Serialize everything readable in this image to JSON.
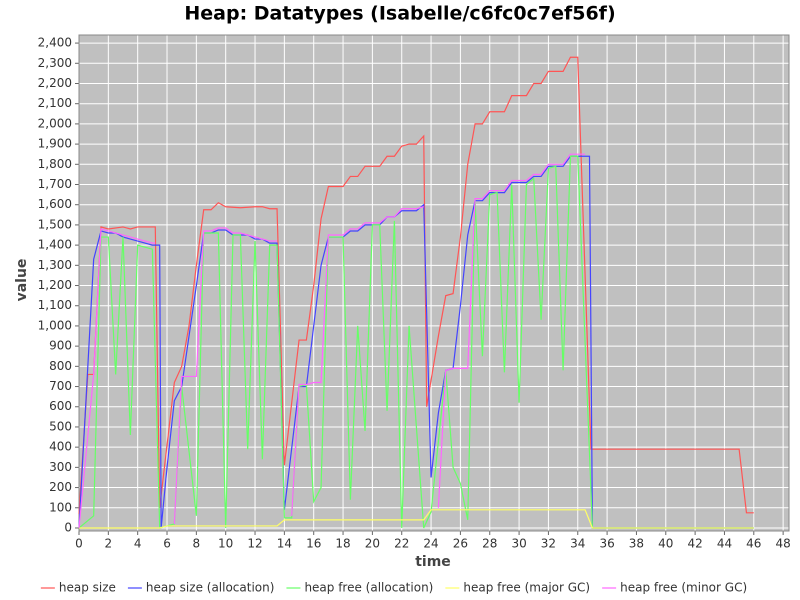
{
  "chart_data": {
    "type": "line",
    "title": "Heap: Datatypes (Isabelle/c6fc0c7ef56f)",
    "x_label": "time",
    "y_label": "value",
    "xlim": [
      0,
      48.4
    ],
    "ylim": [
      -15,
      2440
    ],
    "xticks": [
      0,
      2,
      4,
      6,
      8,
      10,
      12,
      14,
      16,
      18,
      20,
      22,
      24,
      26,
      28,
      30,
      32,
      34,
      36,
      38,
      40,
      42,
      44,
      46,
      48
    ],
    "yticks": [
      0,
      100,
      200,
      300,
      400,
      500,
      600,
      700,
      800,
      900,
      {
        "value": 1000,
        "label": "1,000"
      },
      {
        "value": 1100,
        "label": "1,100"
      },
      {
        "value": 1200,
        "label": "1,200"
      },
      {
        "value": 1300,
        "label": "1,300"
      },
      {
        "value": 1400,
        "label": "1,400"
      },
      {
        "value": 1500,
        "label": "1,500"
      },
      {
        "value": 1600,
        "label": "1,600"
      },
      {
        "value": 1700,
        "label": "1,700"
      },
      {
        "value": 1800,
        "label": "1,800"
      },
      {
        "value": 1900,
        "label": "1,900"
      },
      {
        "value": 2000,
        "label": "2,000"
      },
      {
        "value": 2100,
        "label": "2,100"
      },
      {
        "value": 2200,
        "label": "2,200"
      },
      {
        "value": 2300,
        "label": "2,300"
      },
      {
        "value": 2400,
        "label": "2,400"
      }
    ],
    "grid": true,
    "background": "#c0c0c0",
    "legend": "bottom",
    "series": [
      {
        "name": "heap size",
        "color": "#ff5555",
        "x": [
          0,
          0.6,
          1,
          1.5,
          2,
          3,
          3.5,
          4,
          5,
          5.2,
          5.5,
          6.5,
          7,
          7.5,
          8,
          8.5,
          9,
          9.5,
          10,
          11,
          12,
          12.5,
          13,
          13.5,
          14,
          15,
          15.5,
          16,
          16.5,
          17,
          18,
          18.5,
          19,
          19.5,
          20,
          20.5,
          21,
          21.5,
          22,
          22.5,
          23,
          23.5,
          23.7,
          24.5,
          25,
          25.5,
          26,
          26.5,
          27,
          27.5,
          28,
          29,
          29.5,
          30,
          30.5,
          31,
          31.5,
          32,
          33,
          33.5,
          34,
          34.9,
          35,
          45,
          45.5,
          46
        ],
        "values": [
          70,
          760,
          760,
          1490,
          1480,
          1490,
          1480,
          1490,
          1490,
          1490,
          100,
          720,
          800,
          1000,
          1300,
          1575,
          1575,
          1610,
          1590,
          1585,
          1590,
          1590,
          1580,
          1580,
          310,
          930,
          930,
          1200,
          1530,
          1690,
          1690,
          1740,
          1740,
          1790,
          1790,
          1790,
          1840,
          1840,
          1890,
          1900,
          1900,
          1940,
          600,
          950,
          1150,
          1160,
          1440,
          1800,
          2000,
          2000,
          2060,
          2060,
          2140,
          2140,
          2140,
          2200,
          2200,
          2260,
          2260,
          2330,
          2330,
          390,
          390,
          390,
          75,
          75
        ]
      },
      {
        "name": "heap size (allocation)",
        "color": "#4444ff",
        "x": [
          0,
          1,
          1.5,
          2,
          2.5,
          3,
          3.5,
          4,
          5,
          5.5,
          5.6,
          6,
          6.5,
          7,
          7.5,
          8,
          8.5,
          9,
          9.5,
          10,
          10.5,
          11,
          11.5,
          12,
          12.5,
          13,
          13.5,
          14,
          15,
          15.5,
          16,
          16.5,
          17,
          18,
          18.5,
          19,
          19.5,
          20,
          20.5,
          21,
          21.5,
          22,
          23,
          23.5,
          24,
          24.5,
          25,
          25.5,
          26,
          26.5,
          27,
          27.5,
          28,
          29,
          29.5,
          30,
          30.5,
          31,
          31.5,
          32,
          33,
          33.5,
          34,
          34.8,
          35,
          46
        ],
        "values": [
          0,
          1330,
          1470,
          1460,
          1460,
          1440,
          1430,
          1420,
          1400,
          1400,
          0,
          300,
          630,
          700,
          950,
          1200,
          1460,
          1460,
          1475,
          1475,
          1450,
          1450,
          1450,
          1430,
          1430,
          1410,
          1410,
          90,
          700,
          700,
          1000,
          1300,
          1440,
          1440,
          1470,
          1470,
          1500,
          1500,
          1500,
          1540,
          1540,
          1570,
          1570,
          1600,
          250,
          570,
          780,
          790,
          1100,
          1450,
          1620,
          1620,
          1660,
          1660,
          1710,
          1710,
          1710,
          1740,
          1740,
          1790,
          1790,
          1840,
          1840,
          1840,
          0,
          0
        ]
      },
      {
        "name": "heap free (allocation)",
        "color": "#66ff66",
        "x": [
          0,
          1,
          1.5,
          2,
          2.5,
          3,
          3.5,
          4,
          5,
          5.5,
          6.5,
          7,
          8,
          8.5,
          9.5,
          10,
          10.5,
          11,
          11.5,
          12,
          12.5,
          13,
          13.5,
          14,
          14.5,
          15,
          15.5,
          16,
          16.5,
          17,
          18,
          18.5,
          19,
          19.5,
          20,
          20.5,
          21,
          21.5,
          22,
          22.5,
          23,
          23.5,
          24,
          25,
          25.5,
          26,
          26.5,
          27,
          27.5,
          28,
          28.5,
          29,
          29.5,
          30,
          30.5,
          31,
          31.5,
          32,
          32.5,
          33,
          33.5,
          34,
          35,
          46
        ],
        "values": [
          0,
          60,
          1440,
          1440,
          760,
          1440,
          460,
          1400,
          1380,
          0,
          20,
          700,
          60,
          1460,
          1460,
          0,
          1450,
          1450,
          390,
          1420,
          340,
          1400,
          1400,
          50,
          50,
          700,
          710,
          130,
          200,
          1440,
          1440,
          140,
          1000,
          480,
          1500,
          1500,
          580,
          1520,
          0,
          1000,
          500,
          0,
          80,
          780,
          300,
          220,
          40,
          1620,
          850,
          1650,
          1660,
          770,
          1700,
          620,
          1700,
          1730,
          1030,
          1780,
          1790,
          780,
          1840,
          1840,
          0,
          0
        ]
      },
      {
        "name": "heap free (major GC)",
        "color": "#ffff66",
        "x": [
          0,
          5.5,
          6,
          13.5,
          14,
          23.5,
          24,
          34.5,
          35,
          46
        ],
        "values": [
          0,
          0,
          10,
          10,
          40,
          40,
          90,
          90,
          0,
          0
        ]
      },
      {
        "name": "heap free (minor GC)",
        "color": "#ff66ff",
        "x": [
          0,
          1,
          1.5,
          2,
          3,
          4,
          5,
          5.2,
          6,
          6.5,
          7,
          8,
          8.5,
          9,
          9.5,
          10,
          10.5,
          11,
          12,
          13,
          13.5,
          14,
          14.5,
          15,
          15.5,
          16,
          16.5,
          17,
          18,
          18.5,
          19,
          19.5,
          20.5,
          21,
          21.5,
          22,
          23,
          23.5,
          24,
          24.5,
          25,
          25.5,
          26.5,
          27,
          27.5,
          28,
          29,
          29.5,
          30.5,
          31,
          31.5,
          32,
          33,
          33.5,
          34.5
        ],
        "values": [
          0,
          760,
          1480,
          1470,
          1450,
          1430,
          1410,
          1410,
          null,
          20,
          750,
          750,
          1470,
          1470,
          1485,
          1485,
          1460,
          1460,
          1440,
          1420,
          1420,
          null,
          60,
          710,
          710,
          720,
          720,
          1450,
          1450,
          1480,
          1480,
          1510,
          1510,
          1540,
          1540,
          1580,
          1580,
          1590,
          null,
          100,
          780,
          790,
          790,
          1630,
          1630,
          1670,
          1670,
          1720,
          1720,
          1750,
          1750,
          1800,
          1800,
          1850,
          1850
        ]
      }
    ]
  }
}
